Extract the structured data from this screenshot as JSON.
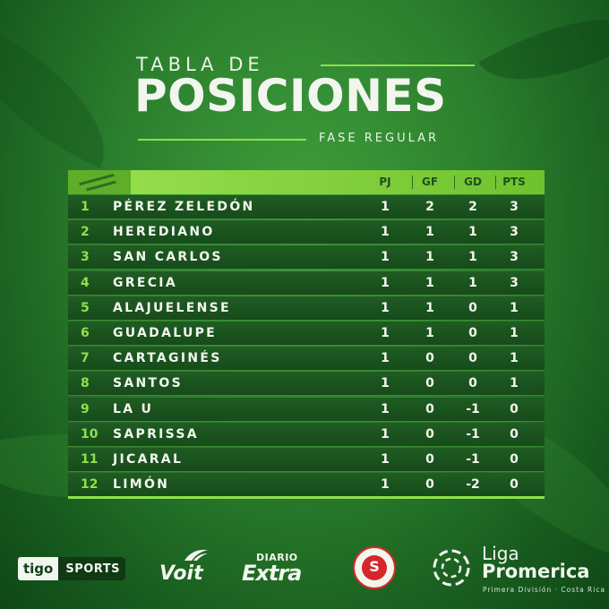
{
  "title": {
    "line1": "TABLA DE",
    "line2": "POSICIONES",
    "subtitle": "FASE REGULAR"
  },
  "table": {
    "columns": [
      "PJ",
      "GF",
      "GD",
      "PTS"
    ],
    "rows": [
      {
        "pos": "1",
        "team": "PÉREZ ZELEDÓN",
        "pj": "1",
        "gf": "2",
        "gd": "2",
        "pts": "3"
      },
      {
        "pos": "2",
        "team": "HEREDIANO",
        "pj": "1",
        "gf": "1",
        "gd": "1",
        "pts": "3"
      },
      {
        "pos": "3",
        "team": "SAN CARLOS",
        "pj": "1",
        "gf": "1",
        "gd": "1",
        "pts": "3"
      },
      {
        "pos": "4",
        "team": "GRECIA",
        "pj": "1",
        "gf": "1",
        "gd": "1",
        "pts": "3"
      },
      {
        "pos": "5",
        "team": "ALAJUELENSE",
        "pj": "1",
        "gf": "1",
        "gd": "0",
        "pts": "1"
      },
      {
        "pos": "6",
        "team": "GUADALUPE",
        "pj": "1",
        "gf": "1",
        "gd": "0",
        "pts": "1"
      },
      {
        "pos": "7",
        "team": "CARTAGINÉS",
        "pj": "1",
        "gf": "0",
        "gd": "0",
        "pts": "1"
      },
      {
        "pos": "8",
        "team": "SANTOS",
        "pj": "1",
        "gf": "0",
        "gd": "0",
        "pts": "1"
      },
      {
        "pos": "9",
        "team": "LA U",
        "pj": "1",
        "gf": "0",
        "gd": "-1",
        "pts": "0"
      },
      {
        "pos": "10",
        "team": "SAPRISSA",
        "pj": "1",
        "gf": "0",
        "gd": "-1",
        "pts": "0"
      },
      {
        "pos": "11",
        "team": "JICARAL",
        "pj": "1",
        "gf": "0",
        "gd": "-1",
        "pts": "0"
      },
      {
        "pos": "12",
        "team": "LIMÓN",
        "pj": "1",
        "gf": "0",
        "gd": "-2",
        "pts": "0"
      }
    ]
  },
  "sponsors": {
    "tigo": {
      "part1": "tigo",
      "part2": "SPORTS"
    },
    "voit": {
      "text": "Voit",
      "icon": "voit-wing-icon"
    },
    "diario": {
      "top": "DIARIO",
      "bottom": "Extra"
    },
    "seal": {
      "letter": "S",
      "icon": "federation-seal-icon"
    },
    "liga": {
      "line1": "Liga",
      "line2": "Promerica",
      "line3": "Primera División · Costa Rica",
      "icon": "liga-ball-icon"
    }
  },
  "colors": {
    "background": "#2b7f2d",
    "accent": "#8fe04d",
    "row": "#1f5c22",
    "text": "#f2f6ee"
  }
}
